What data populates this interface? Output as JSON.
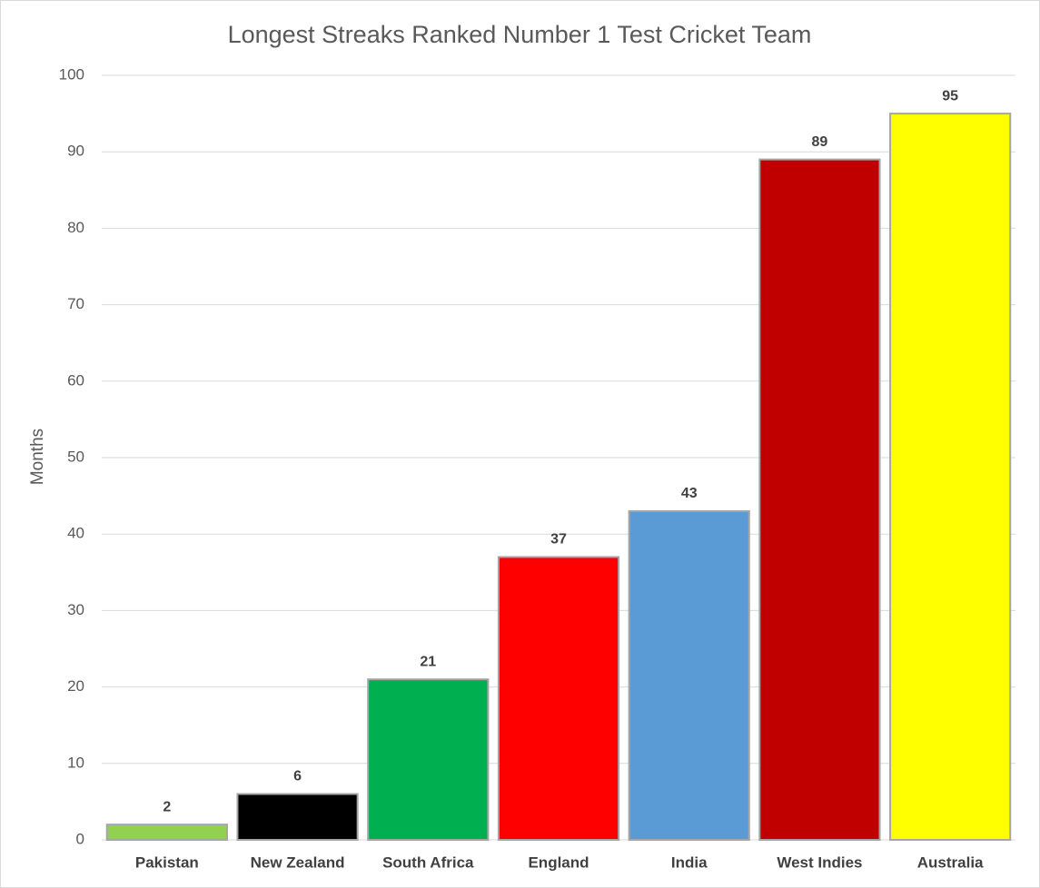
{
  "chart_data": {
    "type": "bar",
    "title": "Longest Streaks Ranked Number 1 Test Cricket Team",
    "y_label": "Months",
    "categories": [
      "Pakistan",
      "New Zealand",
      "South Africa",
      "England",
      "India",
      "West Indies",
      "Australia"
    ],
    "values": [
      2,
      6,
      21,
      37,
      43,
      89,
      95
    ],
    "colors": [
      "#92d050",
      "#000000",
      "#00b050",
      "#ff0000",
      "#5b9bd5",
      "#c00000",
      "#ffff00"
    ],
    "ylim": [
      0,
      100
    ],
    "yticks": [
      0,
      10,
      20,
      30,
      40,
      50,
      60,
      70,
      80,
      90,
      100
    ],
    "grid": true
  }
}
